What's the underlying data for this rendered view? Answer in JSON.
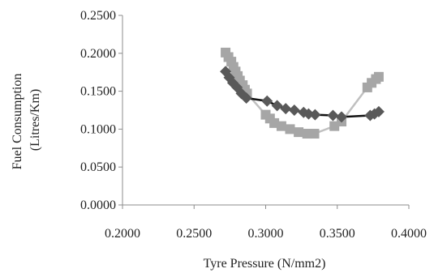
{
  "chart_data": {
    "type": "scatter",
    "title": "",
    "xlabel": "Tyre Pressure (N/mm2)",
    "ylabel_lines": [
      "Fuel Consumption",
      "(Litres/Km)"
    ],
    "xlim": [
      0.2,
      0.4
    ],
    "ylim": [
      0,
      0.25
    ],
    "x_ticks": [
      "0.2000",
      "0.2500",
      "0.3000",
      "0.3500",
      "0.4000"
    ],
    "y_ticks": [
      "0.0000",
      "0.0500",
      "0.1000",
      "0.1500",
      "0.2000",
      "0.2500"
    ],
    "grid": false,
    "legend": "none",
    "series": [
      {
        "marker": "diamond",
        "color": "#595959",
        "line_color": "#111111",
        "points": [
          [
            0.272,
            0.176
          ],
          [
            0.2745,
            0.168
          ],
          [
            0.277,
            0.161
          ],
          [
            0.28,
            0.155
          ],
          [
            0.283,
            0.147
          ],
          [
            0.2865,
            0.141
          ],
          [
            0.301,
            0.137
          ],
          [
            0.308,
            0.131
          ],
          [
            0.314,
            0.127
          ],
          [
            0.32,
            0.125
          ],
          [
            0.3265,
            0.122
          ],
          [
            0.33,
            0.12
          ],
          [
            0.3345,
            0.119
          ],
          [
            0.347,
            0.118
          ],
          [
            0.353,
            0.116
          ],
          [
            0.373,
            0.118
          ],
          [
            0.376,
            0.12
          ],
          [
            0.379,
            0.123
          ]
        ]
      },
      {
        "marker": "square",
        "color": "#a6a6a6",
        "line_color": "#c0c0c0",
        "points": [
          [
            0.272,
            0.201
          ],
          [
            0.274,
            0.195
          ],
          [
            0.276,
            0.189
          ],
          [
            0.2775,
            0.182
          ],
          [
            0.279,
            0.176
          ],
          [
            0.2805,
            0.17
          ],
          [
            0.282,
            0.164
          ],
          [
            0.284,
            0.158
          ],
          [
            0.2855,
            0.152
          ],
          [
            0.287,
            0.147
          ],
          [
            0.3,
            0.119
          ],
          [
            0.303,
            0.114
          ],
          [
            0.306,
            0.108
          ],
          [
            0.311,
            0.104
          ],
          [
            0.317,
            0.1
          ],
          [
            0.323,
            0.096
          ],
          [
            0.329,
            0.094
          ],
          [
            0.334,
            0.094
          ],
          [
            0.348,
            0.104
          ],
          [
            0.353,
            0.11
          ],
          [
            0.371,
            0.155
          ],
          [
            0.374,
            0.161
          ],
          [
            0.377,
            0.166
          ],
          [
            0.379,
            0.169
          ]
        ]
      }
    ]
  }
}
